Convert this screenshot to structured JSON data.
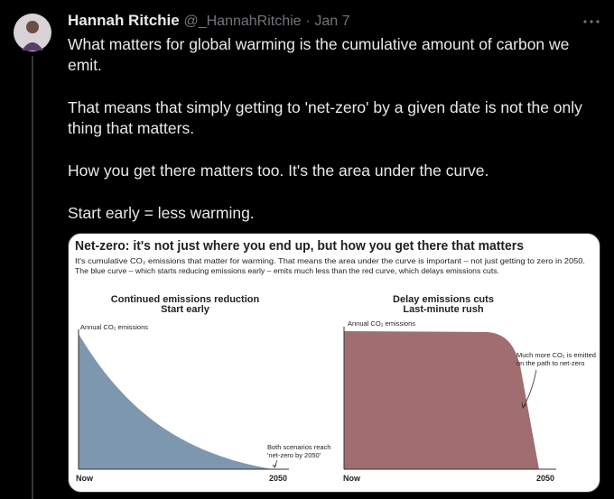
{
  "tweet": {
    "author": "Hannah Ritchie",
    "handle": "@_HannahRitchie",
    "separator": "·",
    "date": "Jan 7",
    "paragraphs": [
      "What matters for global warming is the cumulative amount of carbon we emit.",
      "That means that simply getting to 'net-zero' by a given date is not the only thing that matters.",
      "How you get there matters too. It's the area under the curve.",
      "Start early = less warming."
    ]
  },
  "image": {
    "title": "Net-zero: it's not just where you end up, but how you get there that matters",
    "subtitle": [
      "It's cumulative CO₂ emissions that matter for warming. That means the area under the curve is important – not just getting to zero in 2050.",
      "The blue curve – which starts reducing emissions early – emits much less than the red curve, which delays emissions cuts."
    ],
    "panels": [
      {
        "title": [
          "Continued emissions reduction",
          "Start early"
        ],
        "y_label": "Annual CO₂ emissions",
        "x_start": "Now",
        "x_end": "2050",
        "annotation": [
          "Both scenarios reach",
          "'net-zero by 2050'"
        ]
      },
      {
        "title": [
          "Delay emissions cuts",
          "Last-minute rush"
        ],
        "y_label": "Annual CO₂ emissions",
        "x_start": "Now",
        "x_end": "2050",
        "annotation": [
          "Much more CO₂ is emitted",
          "on the path to net-zero"
        ]
      }
    ]
  }
}
